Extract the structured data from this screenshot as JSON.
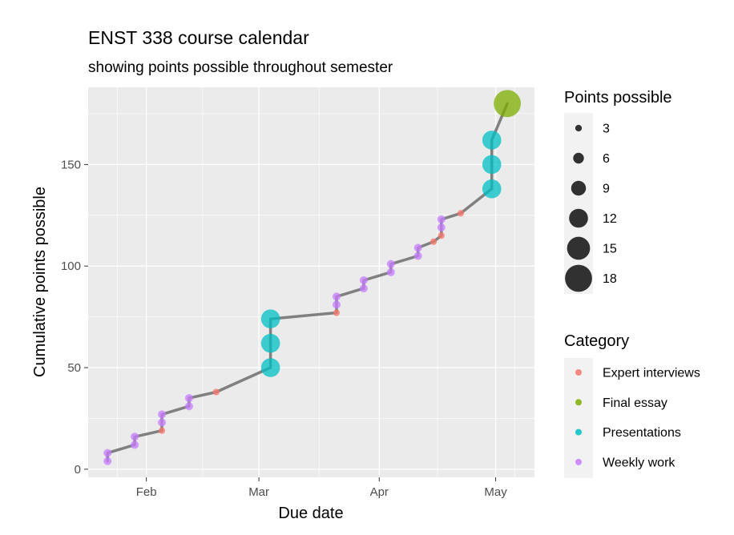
{
  "chart_data": {
    "type": "scatter",
    "title": "ENST 338 course calendar",
    "subtitle": "showing points possible throughout semester",
    "xlabel": "Due date",
    "ylabel": "Cumulative points possible",
    "x_ticks": [
      {
        "label": "Feb",
        "date": "2024-02-01"
      },
      {
        "label": "Mar",
        "date": "2024-03-01"
      },
      {
        "label": "Apr",
        "date": "2024-04-01"
      },
      {
        "label": "May",
        "date": "2024-05-01"
      }
    ],
    "xlim": [
      "2024-01-17",
      "2024-05-11"
    ],
    "y_ticks": [
      0,
      50,
      100,
      150
    ],
    "ylim": [
      -4,
      188
    ],
    "grid": true,
    "line_color": "#808080",
    "categories": [
      {
        "name": "Expert interviews",
        "color": "#F8766D"
      },
      {
        "name": "Final essay",
        "color": "#7CAE00"
      },
      {
        "name": "Presentations",
        "color": "#00BFC4"
      },
      {
        "name": "Weekly work",
        "color": "#C77CFF"
      }
    ],
    "size_legend": {
      "title": "Points possible",
      "values": [
        3,
        6,
        9,
        12,
        15,
        18
      ]
    },
    "category_legend_title": "Category",
    "points": [
      {
        "date": "2024-01-22",
        "cum": 4,
        "pts": 4,
        "cat": "Weekly work"
      },
      {
        "date": "2024-01-22",
        "cum": 8,
        "pts": 4,
        "cat": "Weekly work"
      },
      {
        "date": "2024-01-29",
        "cum": 12,
        "pts": 4,
        "cat": "Weekly work"
      },
      {
        "date": "2024-01-29",
        "cum": 16,
        "pts": 4,
        "cat": "Weekly work"
      },
      {
        "date": "2024-02-05",
        "cum": 19,
        "pts": 3,
        "cat": "Expert interviews"
      },
      {
        "date": "2024-02-05",
        "cum": 23,
        "pts": 4,
        "cat": "Weekly work"
      },
      {
        "date": "2024-02-05",
        "cum": 27,
        "pts": 4,
        "cat": "Weekly work"
      },
      {
        "date": "2024-02-12",
        "cum": 31,
        "pts": 4,
        "cat": "Weekly work"
      },
      {
        "date": "2024-02-12",
        "cum": 35,
        "pts": 4,
        "cat": "Weekly work"
      },
      {
        "date": "2024-02-19",
        "cum": 38,
        "pts": 3,
        "cat": "Expert interviews"
      },
      {
        "date": "2024-03-04",
        "cum": 50,
        "pts": 12,
        "cat": "Presentations"
      },
      {
        "date": "2024-03-04",
        "cum": 62,
        "pts": 12,
        "cat": "Presentations"
      },
      {
        "date": "2024-03-04",
        "cum": 74,
        "pts": 12,
        "cat": "Presentations"
      },
      {
        "date": "2024-03-21",
        "cum": 77,
        "pts": 3,
        "cat": "Expert interviews"
      },
      {
        "date": "2024-03-21",
        "cum": 81,
        "pts": 4,
        "cat": "Weekly work"
      },
      {
        "date": "2024-03-21",
        "cum": 85,
        "pts": 4,
        "cat": "Weekly work"
      },
      {
        "date": "2024-03-28",
        "cum": 89,
        "pts": 4,
        "cat": "Weekly work"
      },
      {
        "date": "2024-03-28",
        "cum": 93,
        "pts": 4,
        "cat": "Weekly work"
      },
      {
        "date": "2024-04-04",
        "cum": 97,
        "pts": 4,
        "cat": "Weekly work"
      },
      {
        "date": "2024-04-04",
        "cum": 101,
        "pts": 4,
        "cat": "Weekly work"
      },
      {
        "date": "2024-04-11",
        "cum": 105,
        "pts": 4,
        "cat": "Weekly work"
      },
      {
        "date": "2024-04-11",
        "cum": 109,
        "pts": 4,
        "cat": "Weekly work"
      },
      {
        "date": "2024-04-15",
        "cum": 112,
        "pts": 3,
        "cat": "Expert interviews"
      },
      {
        "date": "2024-04-17",
        "cum": 115,
        "pts": 3,
        "cat": "Expert interviews"
      },
      {
        "date": "2024-04-17",
        "cum": 119,
        "pts": 4,
        "cat": "Weekly work"
      },
      {
        "date": "2024-04-17",
        "cum": 123,
        "pts": 4,
        "cat": "Weekly work"
      },
      {
        "date": "2024-04-22",
        "cum": 126,
        "pts": 3,
        "cat": "Expert interviews"
      },
      {
        "date": "2024-04-30",
        "cum": 138,
        "pts": 12,
        "cat": "Presentations"
      },
      {
        "date": "2024-04-30",
        "cum": 150,
        "pts": 12,
        "cat": "Presentations"
      },
      {
        "date": "2024-04-30",
        "cum": 162,
        "pts": 12,
        "cat": "Presentations"
      },
      {
        "date": "2024-05-04",
        "cum": 180,
        "pts": 18,
        "cat": "Final essay"
      }
    ]
  }
}
